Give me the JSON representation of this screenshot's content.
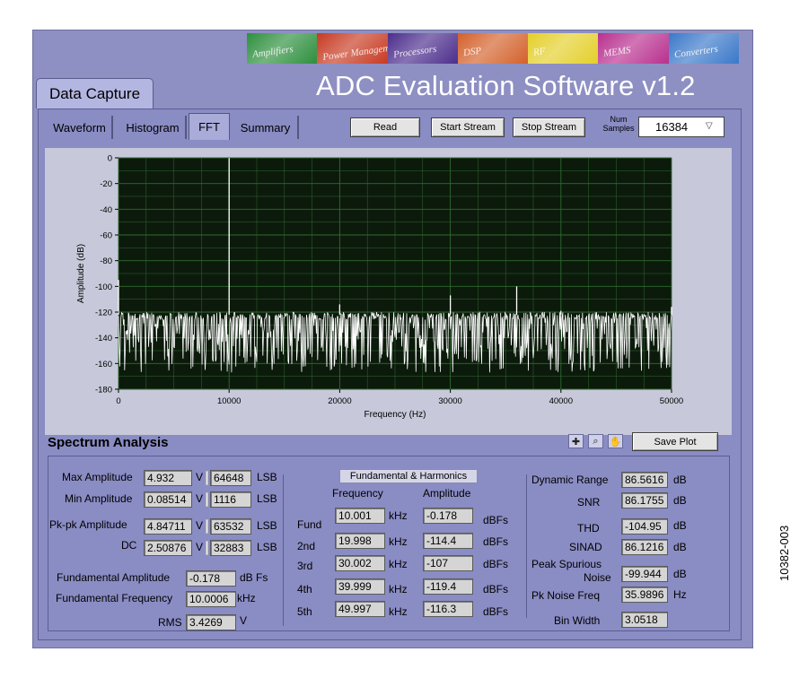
{
  "banner": {
    "tiles": [
      {
        "text": "Amplifiers",
        "color": "#2e8f3e"
      },
      {
        "text": "Power Management",
        "color": "#c73a22"
      },
      {
        "text": "Processors",
        "color": "#4b2d8c"
      },
      {
        "text": "DSP",
        "color": "#d3612b"
      },
      {
        "text": "RF",
        "color": "#e4cf2a"
      },
      {
        "text": "MEMS",
        "color": "#b8308f"
      },
      {
        "text": "Converters",
        "color": "#3a78c9"
      }
    ]
  },
  "app_title": "ADC Evaluation Software v1.2",
  "main_tab": "Data Capture",
  "tabs": [
    "Waveform",
    "Histogram",
    "FFT",
    "Summary"
  ],
  "active_tab": "FFT",
  "toolbar": {
    "read": "Read",
    "start_stream": "Start Stream",
    "stop_stream": "Stop Stream",
    "num_samples_label": "Num Samples",
    "num_samples_value": "16384"
  },
  "chart_data": {
    "type": "line",
    "xlabel": "Frequency (Hz)",
    "ylabel": "Amplitude (dB)",
    "xlim": [
      0,
      50000
    ],
    "ylim": [
      -180,
      0
    ],
    "xticks": [
      "0",
      "10000",
      "20000",
      "30000",
      "40000",
      "50000"
    ],
    "yticks": [
      "0",
      "-20",
      "-40",
      "-60",
      "-80",
      "-100",
      "-120",
      "-140",
      "-160",
      "-180"
    ],
    "grid": true,
    "background": "#0c1a0c",
    "grid_color": "#2f6a2f",
    "trace_color": "#ffffff",
    "noise_floor_db": [
      -145,
      -120
    ],
    "peaks": [
      {
        "x": 0,
        "y": -95
      },
      {
        "x": 10000,
        "y": -0.2
      },
      {
        "x": 19998,
        "y": -114
      },
      {
        "x": 30002,
        "y": -107
      },
      {
        "x": 36000,
        "y": -100
      },
      {
        "x": 40000,
        "y": -119
      },
      {
        "x": 49997,
        "y": -116
      }
    ]
  },
  "spectrum": {
    "title": "Spectrum Analysis",
    "save_plot": "Save Plot",
    "left": [
      {
        "label": "Max Amplitude",
        "v": "4.932",
        "v_unit": "V",
        "lsb": "64648",
        "lsb_unit": "LSB"
      },
      {
        "label": "Min Amplitude",
        "v": "0.08514",
        "v_unit": "V",
        "lsb": "1116",
        "lsb_unit": "LSB"
      },
      {
        "label": "Pk-pk Amplitude",
        "v": "4.84711",
        "v_unit": "V",
        "lsb": "63532",
        "lsb_unit": "LSB"
      },
      {
        "label": "DC",
        "v": "2.50876",
        "v_unit": "V",
        "lsb": "32883",
        "lsb_unit": "LSB"
      }
    ],
    "fund_amp": {
      "label": "Fundamental Amplitude",
      "value": "-0.178",
      "unit": "dB Fs"
    },
    "fund_freq": {
      "label": "Fundamental Frequency",
      "value": "10.0006",
      "unit": "kHz"
    },
    "rms": {
      "label": "RMS",
      "value": "3.4269",
      "unit": "V"
    },
    "harmonics": {
      "title": "Fundamental & Harmonics",
      "freq_header": "Frequency",
      "amp_header": "Amplitude",
      "rows": [
        {
          "label": "Fund",
          "freq": "10.001",
          "freq_unit": "kHz",
          "amp": "-0.178",
          "amp_unit": "dBFs"
        },
        {
          "label": "2nd",
          "freq": "19.998",
          "freq_unit": "kHz",
          "amp": "-114.4",
          "amp_unit": "dBFs"
        },
        {
          "label": "3rd",
          "freq": "30.002",
          "freq_unit": "kHz",
          "amp": "-107",
          "amp_unit": "dBFs"
        },
        {
          "label": "4th",
          "freq": "39.999",
          "freq_unit": "kHz",
          "amp": "-119.4",
          "amp_unit": "dBFs"
        },
        {
          "label": "5th",
          "freq": "49.997",
          "freq_unit": "kHz",
          "amp": "-116.3",
          "amp_unit": "dBFs"
        }
      ]
    },
    "right": [
      {
        "label": "Dynamic Range",
        "value": "86.5616",
        "unit": "dB"
      },
      {
        "label": "SNR",
        "value": "86.1755",
        "unit": "dB"
      },
      {
        "label": "THD",
        "value": "-104.95",
        "unit": "dB"
      },
      {
        "label": "SINAD",
        "value": "86.1216",
        "unit": "dB"
      },
      {
        "label1": "Peak Spurious",
        "label2": "Noise",
        "value": "-99.944",
        "unit": "dB"
      },
      {
        "label": "Pk Noise Freq",
        "value": "35.9896",
        "unit": "Hz"
      },
      {
        "label": "Bin Width",
        "value": "3.0518",
        "unit": ""
      }
    ]
  },
  "figure_code": "10382-003"
}
